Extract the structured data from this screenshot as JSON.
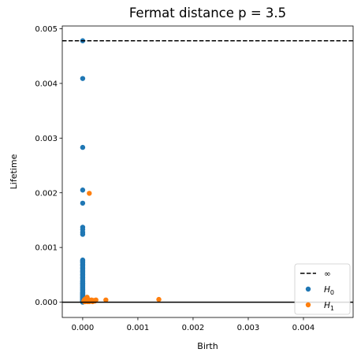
{
  "chart_data": {
    "type": "scatter",
    "title": "Fermat distance p = 3.5",
    "xlabel": "Birth",
    "ylabel": "Lifetime",
    "xlim": [
      -0.00037,
      0.0049
    ],
    "ylim": [
      -0.00028,
      0.00505
    ],
    "xticks": [
      0.0,
      0.001,
      0.002,
      0.003,
      0.004
    ],
    "yticks": [
      0.0,
      0.001,
      0.002,
      0.003,
      0.004,
      0.005
    ],
    "xtick_labels": [
      "0.000",
      "0.001",
      "0.002",
      "0.003",
      "0.004"
    ],
    "ytick_labels": [
      "0.000",
      "0.001",
      "0.002",
      "0.003",
      "0.004",
      "0.005"
    ],
    "grid": false,
    "infinity_line": {
      "y": 0.00478,
      "legend": "∞",
      "style": "dashed",
      "color": "#000000"
    },
    "baseline": {
      "y": 0.0,
      "color": "#000000"
    },
    "legend": {
      "placement": "bottom-right",
      "entries": [
        {
          "label": "∞",
          "type": "dashed-line",
          "color": "#000000"
        },
        {
          "label": "H",
          "sub": "0",
          "type": "marker",
          "color": "#1f77b4"
        },
        {
          "label": "H",
          "sub": "1",
          "type": "marker",
          "color": "#ff7f0e"
        }
      ]
    },
    "series": [
      {
        "name": "H0",
        "color": "#1f77b4",
        "x": [
          0,
          0,
          0,
          0,
          0,
          0,
          0,
          0,
          0,
          0,
          0,
          0,
          0,
          0,
          0,
          0,
          0,
          0,
          0,
          0,
          0,
          0,
          0,
          0,
          0,
          0,
          0,
          0,
          0,
          0,
          0,
          0,
          0,
          0,
          0,
          0,
          0,
          0,
          0,
          0,
          0,
          0,
          0,
          0,
          0,
          0,
          0,
          0,
          0,
          0,
          0,
          0,
          0,
          0,
          0,
          0,
          0,
          0,
          0,
          0,
          0,
          0,
          0,
          0,
          0,
          0,
          0,
          0,
          0,
          0
        ],
        "y": [
          0.00478,
          0.00409,
          0.00283,
          0.00205,
          0.00181,
          0.00137,
          0.00133,
          0.00128,
          0.00124,
          0.00077,
          0.00075,
          0.00072,
          0.00069,
          0.00066,
          0.00063,
          0.0006,
          0.00057,
          0.00054,
          0.00051,
          0.00048,
          0.00045,
          0.00042,
          0.00039,
          0.00037,
          0.00035,
          0.00033,
          0.00031,
          0.00029,
          0.00027,
          0.00025,
          0.00023,
          0.00021,
          0.00019,
          0.00017,
          0.00016,
          0.00015,
          0.00014,
          0.00013,
          0.00012,
          0.00011,
          0.0001,
          9e-05,
          8e-05,
          7e-05,
          6e-05,
          5e-05,
          4e-05,
          3e-05,
          2e-05,
          1e-05,
          0.0,
          0.00018,
          0.00022,
          0.00026,
          0.0003,
          0.00034,
          0.00038,
          0.00044,
          0.0005,
          0.00056,
          0.00062,
          0.00068,
          0.00074,
          3e-05,
          6e-05,
          9e-05,
          0.00012,
          0.00015,
          2e-05,
          1e-05
        ]
      },
      {
        "name": "H1",
        "color": "#ff7f0e",
        "x": [
          0.00012,
          0.00138,
          0.00042,
          0.00024,
          0.0002,
          0.00016,
          0.00013,
          0.0001,
          8e-05,
          6e-05,
          5e-05,
          4e-05,
          3e-05,
          2e-05,
          0.00011,
          9e-05,
          7e-05,
          0.00015,
          0.00018,
          0.00022,
          5e-05,
          3e-05,
          0.00012,
          8e-05
        ],
        "y": [
          0.00199,
          5e-05,
          4e-05,
          4e-05,
          3e-05,
          4e-05,
          3e-05,
          5e-05,
          9e-05,
          2e-05,
          1e-05,
          3e-05,
          1e-05,
          2e-05,
          2e-05,
          1e-05,
          4e-05,
          2e-05,
          1e-05,
          2e-05,
          6e-05,
          4e-05,
          1e-05,
          3e-05
        ]
      }
    ]
  }
}
